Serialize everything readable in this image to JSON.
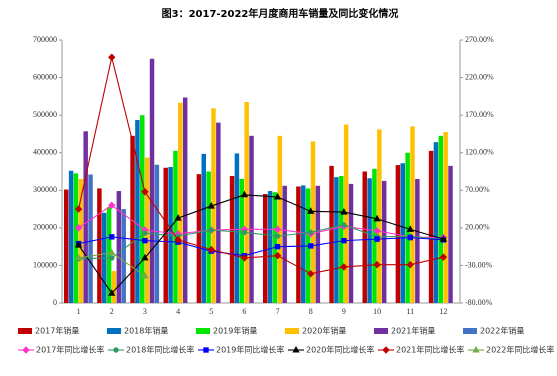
{
  "chart_data": {
    "type": "bar",
    "title": "图3：2017-2022年月度商用车销量及同比变化情况",
    "categories": [
      "1",
      "2",
      "3",
      "4",
      "5",
      "6",
      "7",
      "8",
      "9",
      "10",
      "11",
      "12"
    ],
    "ylim": [
      0,
      700000
    ],
    "yticks": [
      0,
      100000,
      200000,
      300000,
      400000,
      500000,
      600000,
      700000
    ],
    "y2lim": [
      -80,
      270
    ],
    "y2ticks": [
      {
        "value": -80,
        "label": "-80.00%"
      },
      {
        "value": -30,
        "label": "-30.00%"
      },
      {
        "value": 20,
        "label": "20.00%"
      },
      {
        "value": 70,
        "label": "70.00%"
      },
      {
        "value": 120,
        "label": "120.00%"
      },
      {
        "value": 170,
        "label": "170.00%"
      },
      {
        "value": 220,
        "label": "220.00%"
      },
      {
        "value": 270,
        "label": "270.00%"
      }
    ],
    "series": [
      {
        "name": "2017年销量",
        "color": "#c00000",
        "values": [
          302000,
          305000,
          445000,
          360000,
          343000,
          338000,
          290000,
          310000,
          365000,
          350000,
          367000,
          405000
        ]
      },
      {
        "name": "2018年销量",
        "color": "#0070c0",
        "values": [
          352000,
          240000,
          487000,
          362000,
          397000,
          398000,
          298000,
          313000,
          335000,
          332000,
          372000,
          428000
        ]
      },
      {
        "name": "2019年销量",
        "color": "#00e600",
        "values": [
          345000,
          255000,
          500000,
          405000,
          350000,
          330000,
          295000,
          305000,
          338000,
          357000,
          400000,
          445000
        ]
      },
      {
        "name": "2020年销量",
        "color": "#ffc000",
        "values": [
          330000,
          85000,
          387000,
          533000,
          518000,
          535000,
          445000,
          430000,
          475000,
          462000,
          470000,
          455000
        ]
      },
      {
        "name": "2021年销量",
        "color": "#7030a0",
        "values": [
          457000,
          298000,
          650000,
          547000,
          480000,
          445000,
          312000,
          312000,
          317000,
          325000,
          330000,
          365000
        ]
      },
      {
        "name": "2022年销量",
        "color": "#4472c4",
        "values": [
          342000,
          250000,
          368000,
          null,
          null,
          null,
          null,
          null,
          null,
          null,
          null,
          null
        ]
      },
      {
        "name": "2017年同比增长率",
        "color": "#ff33cc",
        "type": "line",
        "marker": "diamond",
        "axis": "y2",
        "values": [
          20,
          50,
          17,
          12,
          17,
          18,
          18,
          12,
          22,
          16,
          8,
          7
        ]
      },
      {
        "name": "2018年同比增长率",
        "color": "#339966",
        "type": "line",
        "marker": "circle",
        "axis": "y2",
        "values": [
          -21,
          -20,
          13,
          9,
          17,
          14,
          9,
          14,
          24,
          8,
          9,
          4
        ]
      },
      {
        "name": "2019年同比增长率",
        "color": "#0000ff",
        "type": "line",
        "marker": "square",
        "axis": "y2",
        "values": [
          -1,
          8,
          3,
          1,
          -11,
          -17,
          -5,
          -4,
          3,
          5,
          7,
          4
        ]
      },
      {
        "name": "2020年同比增长率",
        "color": "#000000",
        "type": "line",
        "marker": "triangle",
        "axis": "y2",
        "values": [
          -3,
          -67,
          -20,
          33,
          49,
          64,
          61,
          42,
          41,
          32,
          18,
          5
        ]
      },
      {
        "name": "2021年同比增长率",
        "color": "#c00000",
        "type": "line",
        "marker": "diamond",
        "axis": "y2",
        "values": [
          45,
          247,
          68,
          4,
          -9,
          -20,
          -17,
          -41,
          -32,
          -29,
          -29,
          -19
        ]
      },
      {
        "name": "2022年同比增长率",
        "color": "#70ad47",
        "type": "line",
        "marker": "triangle",
        "axis": "y2",
        "values": [
          -20,
          -13,
          -44,
          null,
          null,
          null,
          null,
          null,
          null,
          null,
          null,
          null
        ]
      }
    ]
  }
}
